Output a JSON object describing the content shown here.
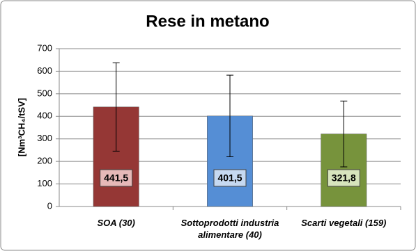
{
  "chart_data": {
    "type": "bar",
    "title": "Rese in metano",
    "y_label": "[Nm³CH₄/tSV]",
    "categories": [
      "SOA (30)",
      "Sottoprodotti industria alimentare (40)",
      "Scarti vegetali (159)"
    ],
    "values": [
      441.5,
      401.5,
      321.8
    ],
    "value_labels": [
      "441,5",
      "401,5",
      "321,8"
    ],
    "errors": [
      196,
      181,
      146
    ],
    "colors": [
      "#953735",
      "#558ed5",
      "#77933c"
    ],
    "ylim": [
      0,
      700
    ],
    "yticks": [
      0,
      100,
      200,
      300,
      400,
      500,
      600,
      700
    ],
    "grid": true
  }
}
